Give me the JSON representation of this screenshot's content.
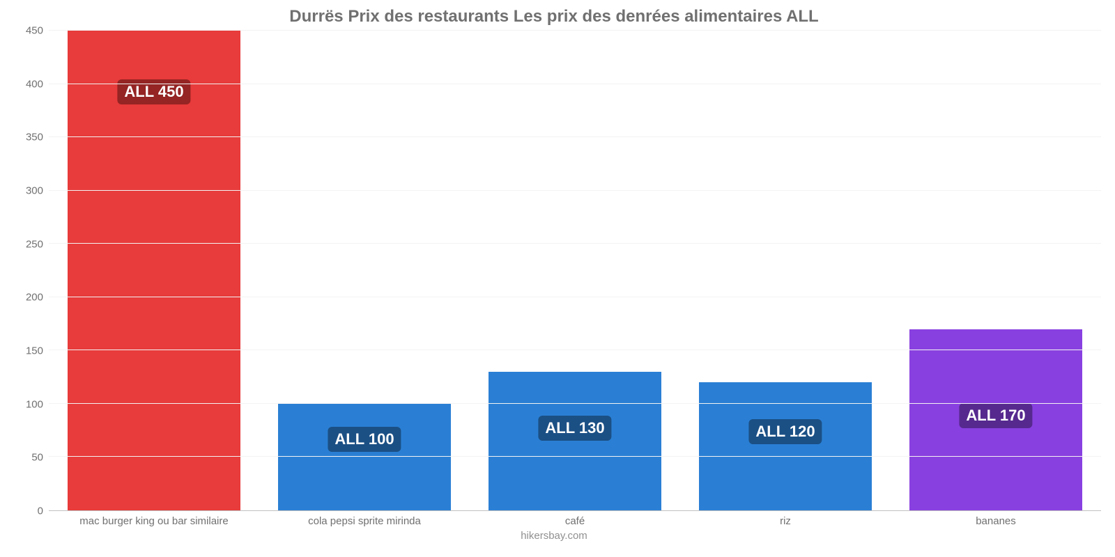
{
  "chart": {
    "type": "bar",
    "title": "Durrës Prix des restaurants Les prix des denrées alimentaires ALL",
    "title_fontsize": 24,
    "title_color": "#707070",
    "source": "hikersbay.com",
    "background_color": "#ffffff",
    "grid_color": "#f3f3f3",
    "axis_color": "#c0c0c0",
    "tick_color": "#707070",
    "tick_fontsize": 15,
    "ylim": [
      0,
      450
    ],
    "ytick_step": 50,
    "yticks": [
      0,
      50,
      100,
      150,
      200,
      250,
      300,
      350,
      400,
      450
    ],
    "bar_width_pct": 82,
    "value_prefix": "ALL ",
    "label_fontsize": 22,
    "label_text_color": "#ffffff",
    "categories": [
      "mac burger king ou bar similaire",
      "cola pepsi sprite mirinda",
      "café",
      "riz",
      "bananes"
    ],
    "values": [
      450,
      100,
      130,
      120,
      170
    ],
    "bar_colors": [
      "#e83b3b",
      "#2a7fd4",
      "#2a7fd4",
      "#2a7fd4",
      "#8940e0"
    ],
    "label_bg_colors": [
      "#952424",
      "#1b5085",
      "#1b5085",
      "#1b5085",
      "#56298f"
    ],
    "label_y_from_bottom": [
      380,
      55,
      65,
      62,
      77
    ]
  }
}
